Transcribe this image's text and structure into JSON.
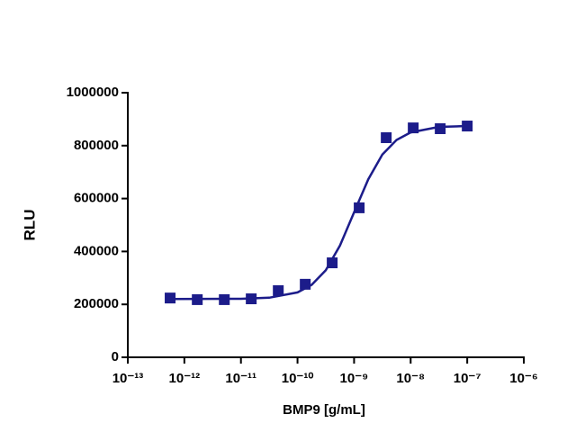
{
  "chart_data": {
    "type": "scatter",
    "xlabel": "BMP9 [g/mL]",
    "ylabel": "RLU",
    "xscale": "log",
    "xlim": [
      1e-13,
      1e-06
    ],
    "xticks": [
      {
        "value": 1e-13,
        "label": "10⁻¹³"
      },
      {
        "value": 1e-12,
        "label": "10⁻¹²"
      },
      {
        "value": 1e-11,
        "label": "10⁻¹¹"
      },
      {
        "value": 1e-10,
        "label": "10⁻¹⁰"
      },
      {
        "value": 1e-09,
        "label": "10⁻⁹"
      },
      {
        "value": 1e-08,
        "label": "10⁻⁸"
      },
      {
        "value": 1e-07,
        "label": "10⁻⁷"
      },
      {
        "value": 1e-06,
        "label": "10⁻⁶"
      }
    ],
    "ylim": [
      0,
      1000000
    ],
    "yticks": [
      0,
      200000,
      400000,
      600000,
      800000,
      1000000
    ],
    "series": [
      {
        "color": "#1c1c8a",
        "x": [
          5.6e-13,
          1.69e-12,
          5.08e-12,
          1.52e-11,
          4.57e-11,
          1.37e-10,
          4.1e-10,
          1.23e-09,
          3.7e-09,
          1.11e-08,
          3.33e-08,
          1e-07
        ],
        "values": [
          224000,
          218000,
          218000,
          221000,
          252000,
          276000,
          357000,
          565000,
          830000,
          867000,
          864000,
          874000
        ]
      }
    ],
    "fit": {
      "color": "#1c1c8a",
      "x": [
        5e-13,
        1e-11,
        3.16e-11,
        1e-10,
        1.78e-10,
        3.16e-10,
        5.62e-10,
        1e-09,
        1.78e-09,
        3.16e-09,
        5.62e-09,
        1e-08,
        3.16e-08,
        1e-07
      ],
      "values": [
        220100,
        221000,
        225200,
        245100,
        273700,
        329000,
        422200,
        547500,
        672700,
        766000,
        821500,
        850000,
        870900,
        874300
      ]
    }
  }
}
